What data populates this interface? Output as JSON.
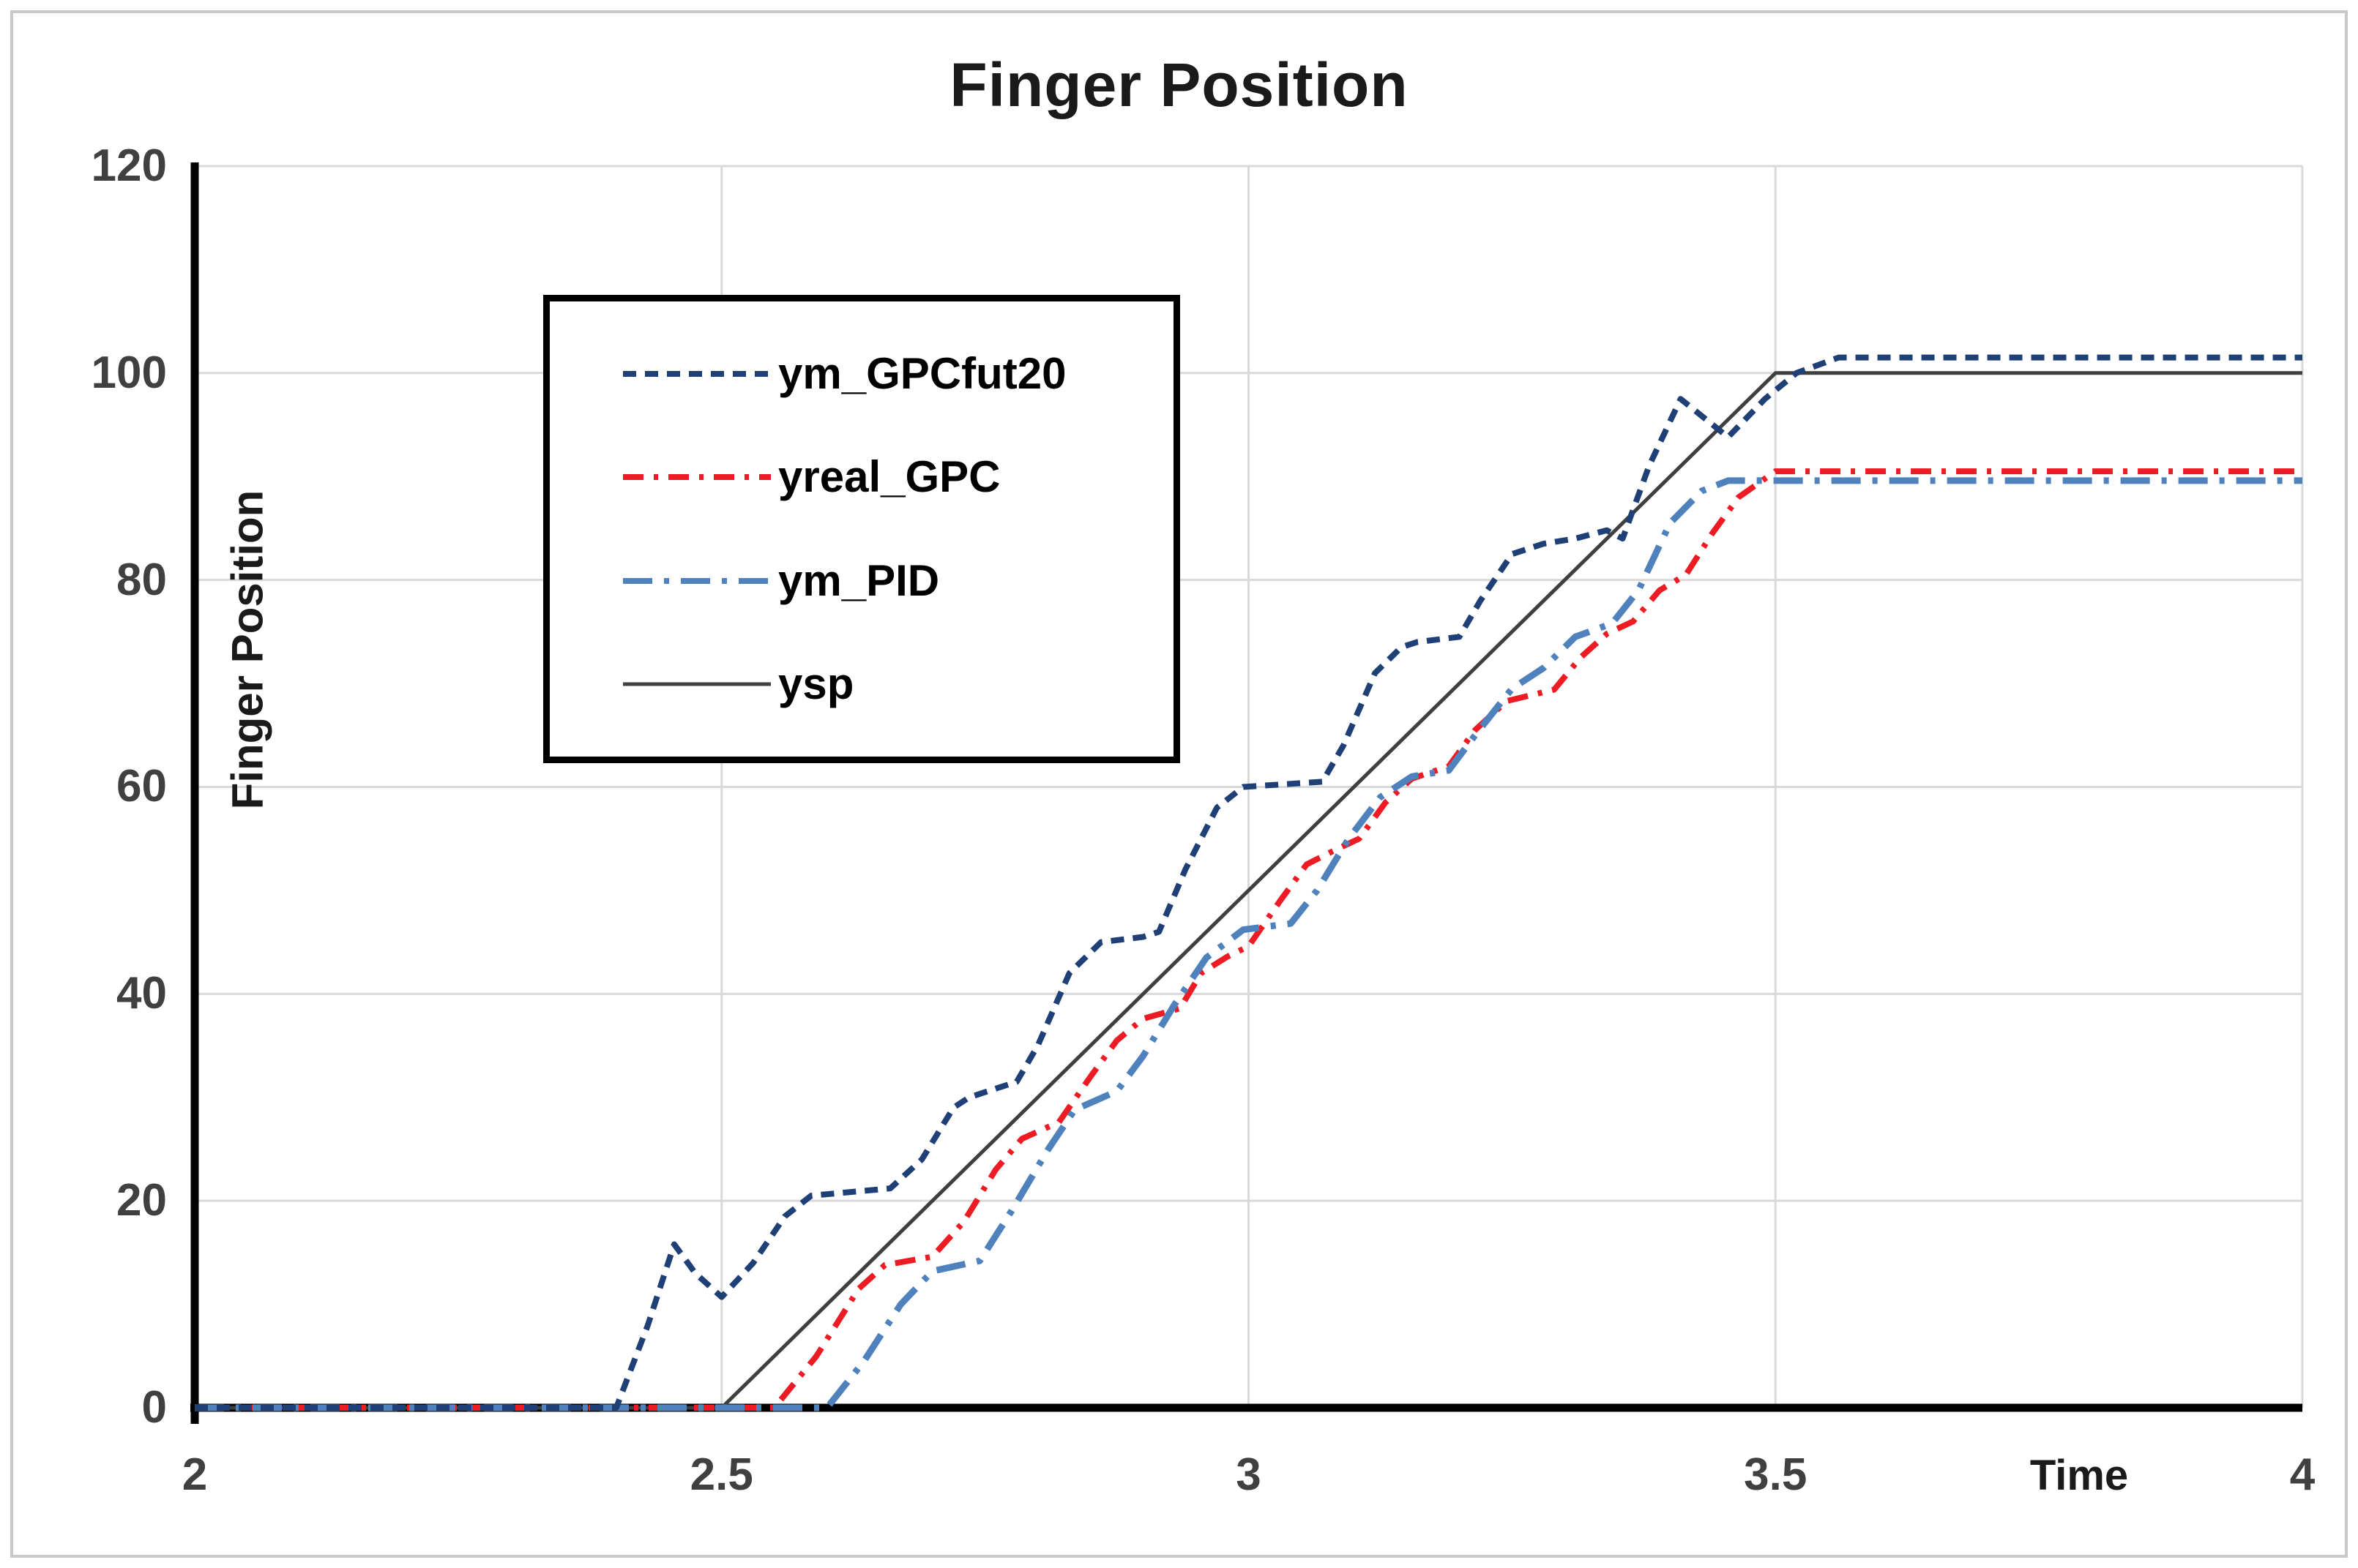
{
  "title": "Finger Position",
  "chart_data": {
    "type": "line",
    "title": "Finger Position",
    "xlabel": "Time",
    "ylabel": "Finger Position",
    "xlim": [
      2,
      4
    ],
    "ylim": [
      0,
      120
    ],
    "x_ticks": [
      2,
      2.5,
      3,
      3.5,
      4
    ],
    "y_ticks": [
      0,
      20,
      40,
      60,
      80,
      100,
      120
    ],
    "grid": true,
    "legend_position": "upper-left-inside",
    "colors": {
      "grid": "#d9d9d9",
      "axis": "#000000",
      "tick_text": "#404040",
      "title_text": "#1a1a1a",
      "legend_border": "#000000"
    },
    "series": [
      {
        "name": "ym_GPCfut20",
        "color": "#1f3f77",
        "style": "dashed",
        "width": 8,
        "points": [
          [
            2.0,
            0
          ],
          [
            2.4,
            0
          ],
          [
            2.43,
            8
          ],
          [
            2.455,
            15.8
          ],
          [
            2.475,
            13
          ],
          [
            2.5,
            10.7
          ],
          [
            2.53,
            14
          ],
          [
            2.56,
            18.5
          ],
          [
            2.585,
            20.5
          ],
          [
            2.66,
            21.2
          ],
          [
            2.69,
            24
          ],
          [
            2.72,
            29
          ],
          [
            2.735,
            30
          ],
          [
            2.78,
            31.5
          ],
          [
            2.8,
            35
          ],
          [
            2.83,
            42
          ],
          [
            2.855,
            44.5
          ],
          [
            2.86,
            45
          ],
          [
            2.9,
            45.5
          ],
          [
            2.915,
            46
          ],
          [
            2.94,
            52
          ],
          [
            2.97,
            58
          ],
          [
            2.995,
            60
          ],
          [
            3.07,
            60.5
          ],
          [
            3.09,
            64
          ],
          [
            3.12,
            71
          ],
          [
            3.145,
            73.5
          ],
          [
            3.16,
            74
          ],
          [
            3.2,
            74.5
          ],
          [
            3.22,
            78
          ],
          [
            3.25,
            82.5
          ],
          [
            3.28,
            83.5
          ],
          [
            3.31,
            84
          ],
          [
            3.34,
            84.8
          ],
          [
            3.355,
            84
          ],
          [
            3.38,
            91
          ],
          [
            3.41,
            97.5
          ],
          [
            3.455,
            93.8
          ],
          [
            3.49,
            97.5
          ],
          [
            3.52,
            100
          ],
          [
            3.56,
            101.5
          ],
          [
            4.0,
            101.5
          ]
        ]
      },
      {
        "name": "yreal_GPC",
        "color": "#ed1c24",
        "style": "dash-dot",
        "width": 8,
        "points": [
          [
            2.0,
            0
          ],
          [
            2.55,
            0
          ],
          [
            2.59,
            5
          ],
          [
            2.63,
            11.5
          ],
          [
            2.655,
            13.8
          ],
          [
            2.7,
            14.6
          ],
          [
            2.73,
            18
          ],
          [
            2.76,
            23
          ],
          [
            2.785,
            26
          ],
          [
            2.82,
            27.6
          ],
          [
            2.85,
            32
          ],
          [
            2.875,
            35.5
          ],
          [
            2.9,
            37.6
          ],
          [
            2.935,
            38.6
          ],
          [
            2.955,
            42
          ],
          [
            2.98,
            43.6
          ],
          [
            3.0,
            44.6
          ],
          [
            3.03,
            49
          ],
          [
            3.055,
            52.5
          ],
          [
            3.08,
            53.8
          ],
          [
            3.105,
            55
          ],
          [
            3.13,
            58.5
          ],
          [
            3.155,
            60.8
          ],
          [
            3.19,
            62
          ],
          [
            3.215,
            65.5
          ],
          [
            3.245,
            68.3
          ],
          [
            3.29,
            69.4
          ],
          [
            3.315,
            72.5
          ],
          [
            3.34,
            74.8
          ],
          [
            3.365,
            76
          ],
          [
            3.39,
            79
          ],
          [
            3.415,
            80.5
          ],
          [
            3.44,
            84.5
          ],
          [
            3.465,
            88
          ],
          [
            3.5,
            90.5
          ],
          [
            4.0,
            90.5
          ]
        ]
      },
      {
        "name": "ym_PID",
        "color": "#4f81bd",
        "style": "long-dash-dot",
        "width": 9,
        "points": [
          [
            2.0,
            0
          ],
          [
            2.6,
            0
          ],
          [
            2.635,
            4.5
          ],
          [
            2.67,
            10
          ],
          [
            2.7,
            13.2
          ],
          [
            2.745,
            14.2
          ],
          [
            2.775,
            19
          ],
          [
            2.81,
            25
          ],
          [
            2.835,
            28.8
          ],
          [
            2.875,
            30.6
          ],
          [
            2.9,
            34
          ],
          [
            2.93,
            39
          ],
          [
            2.96,
            43.5
          ],
          [
            2.995,
            46.2
          ],
          [
            3.04,
            46.8
          ],
          [
            3.065,
            50
          ],
          [
            3.095,
            55
          ],
          [
            3.125,
            59
          ],
          [
            3.155,
            61
          ],
          [
            3.19,
            61.6
          ],
          [
            3.215,
            65
          ],
          [
            3.25,
            69.5
          ],
          [
            3.28,
            71.5
          ],
          [
            3.31,
            74.5
          ],
          [
            3.345,
            75.8
          ],
          [
            3.37,
            79
          ],
          [
            3.4,
            85.5
          ],
          [
            3.43,
            88.6
          ],
          [
            3.455,
            89.6
          ],
          [
            4.0,
            89.6
          ]
        ]
      },
      {
        "name": "ysp",
        "color": "#3f3f3f",
        "style": "solid",
        "width": 5,
        "points": [
          [
            2.0,
            0
          ],
          [
            2.5,
            0
          ],
          [
            3.5,
            100
          ],
          [
            4.0,
            100
          ]
        ]
      }
    ]
  }
}
